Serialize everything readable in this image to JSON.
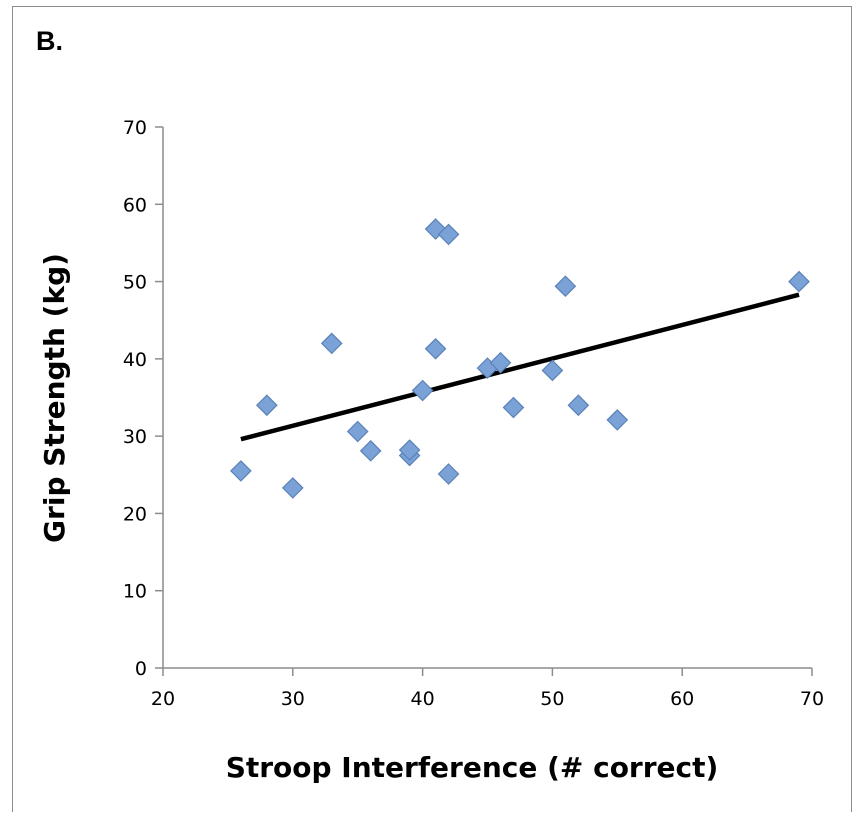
{
  "panel_label": "B.",
  "chart_data": {
    "type": "scatter",
    "title": "",
    "xlabel": "Stroop Interference (# correct)",
    "ylabel": "Grip Strength (kg)",
    "xlim": [
      20,
      70
    ],
    "ylim": [
      0,
      70
    ],
    "xticks": [
      20,
      30,
      40,
      50,
      60,
      70
    ],
    "yticks": [
      0,
      10,
      20,
      30,
      40,
      50,
      60,
      70
    ],
    "grid": false,
    "marker": "diamond",
    "marker_color": "#7ba2d6",
    "marker_edge_color": "#5a82b8",
    "trendline_color": "#000000",
    "points": [
      {
        "x": 26,
        "y": 25.5
      },
      {
        "x": 28,
        "y": 34
      },
      {
        "x": 30,
        "y": 23.3
      },
      {
        "x": 33,
        "y": 42
      },
      {
        "x": 35,
        "y": 30.6
      },
      {
        "x": 36,
        "y": 28.1
      },
      {
        "x": 39,
        "y": 27.5
      },
      {
        "x": 39,
        "y": 28.2
      },
      {
        "x": 40,
        "y": 35.9
      },
      {
        "x": 41,
        "y": 56.8
      },
      {
        "x": 41,
        "y": 41.3
      },
      {
        "x": 42,
        "y": 56.1
      },
      {
        "x": 42,
        "y": 25.1
      },
      {
        "x": 45,
        "y": 38.8
      },
      {
        "x": 46,
        "y": 39.5
      },
      {
        "x": 47,
        "y": 33.7
      },
      {
        "x": 50,
        "y": 38.5
      },
      {
        "x": 51,
        "y": 49.4
      },
      {
        "x": 52,
        "y": 34
      },
      {
        "x": 55,
        "y": 32.1
      },
      {
        "x": 69,
        "y": 50
      }
    ],
    "trendline": {
      "x": [
        26,
        69
      ],
      "y": [
        29.6,
        48.3
      ]
    }
  }
}
